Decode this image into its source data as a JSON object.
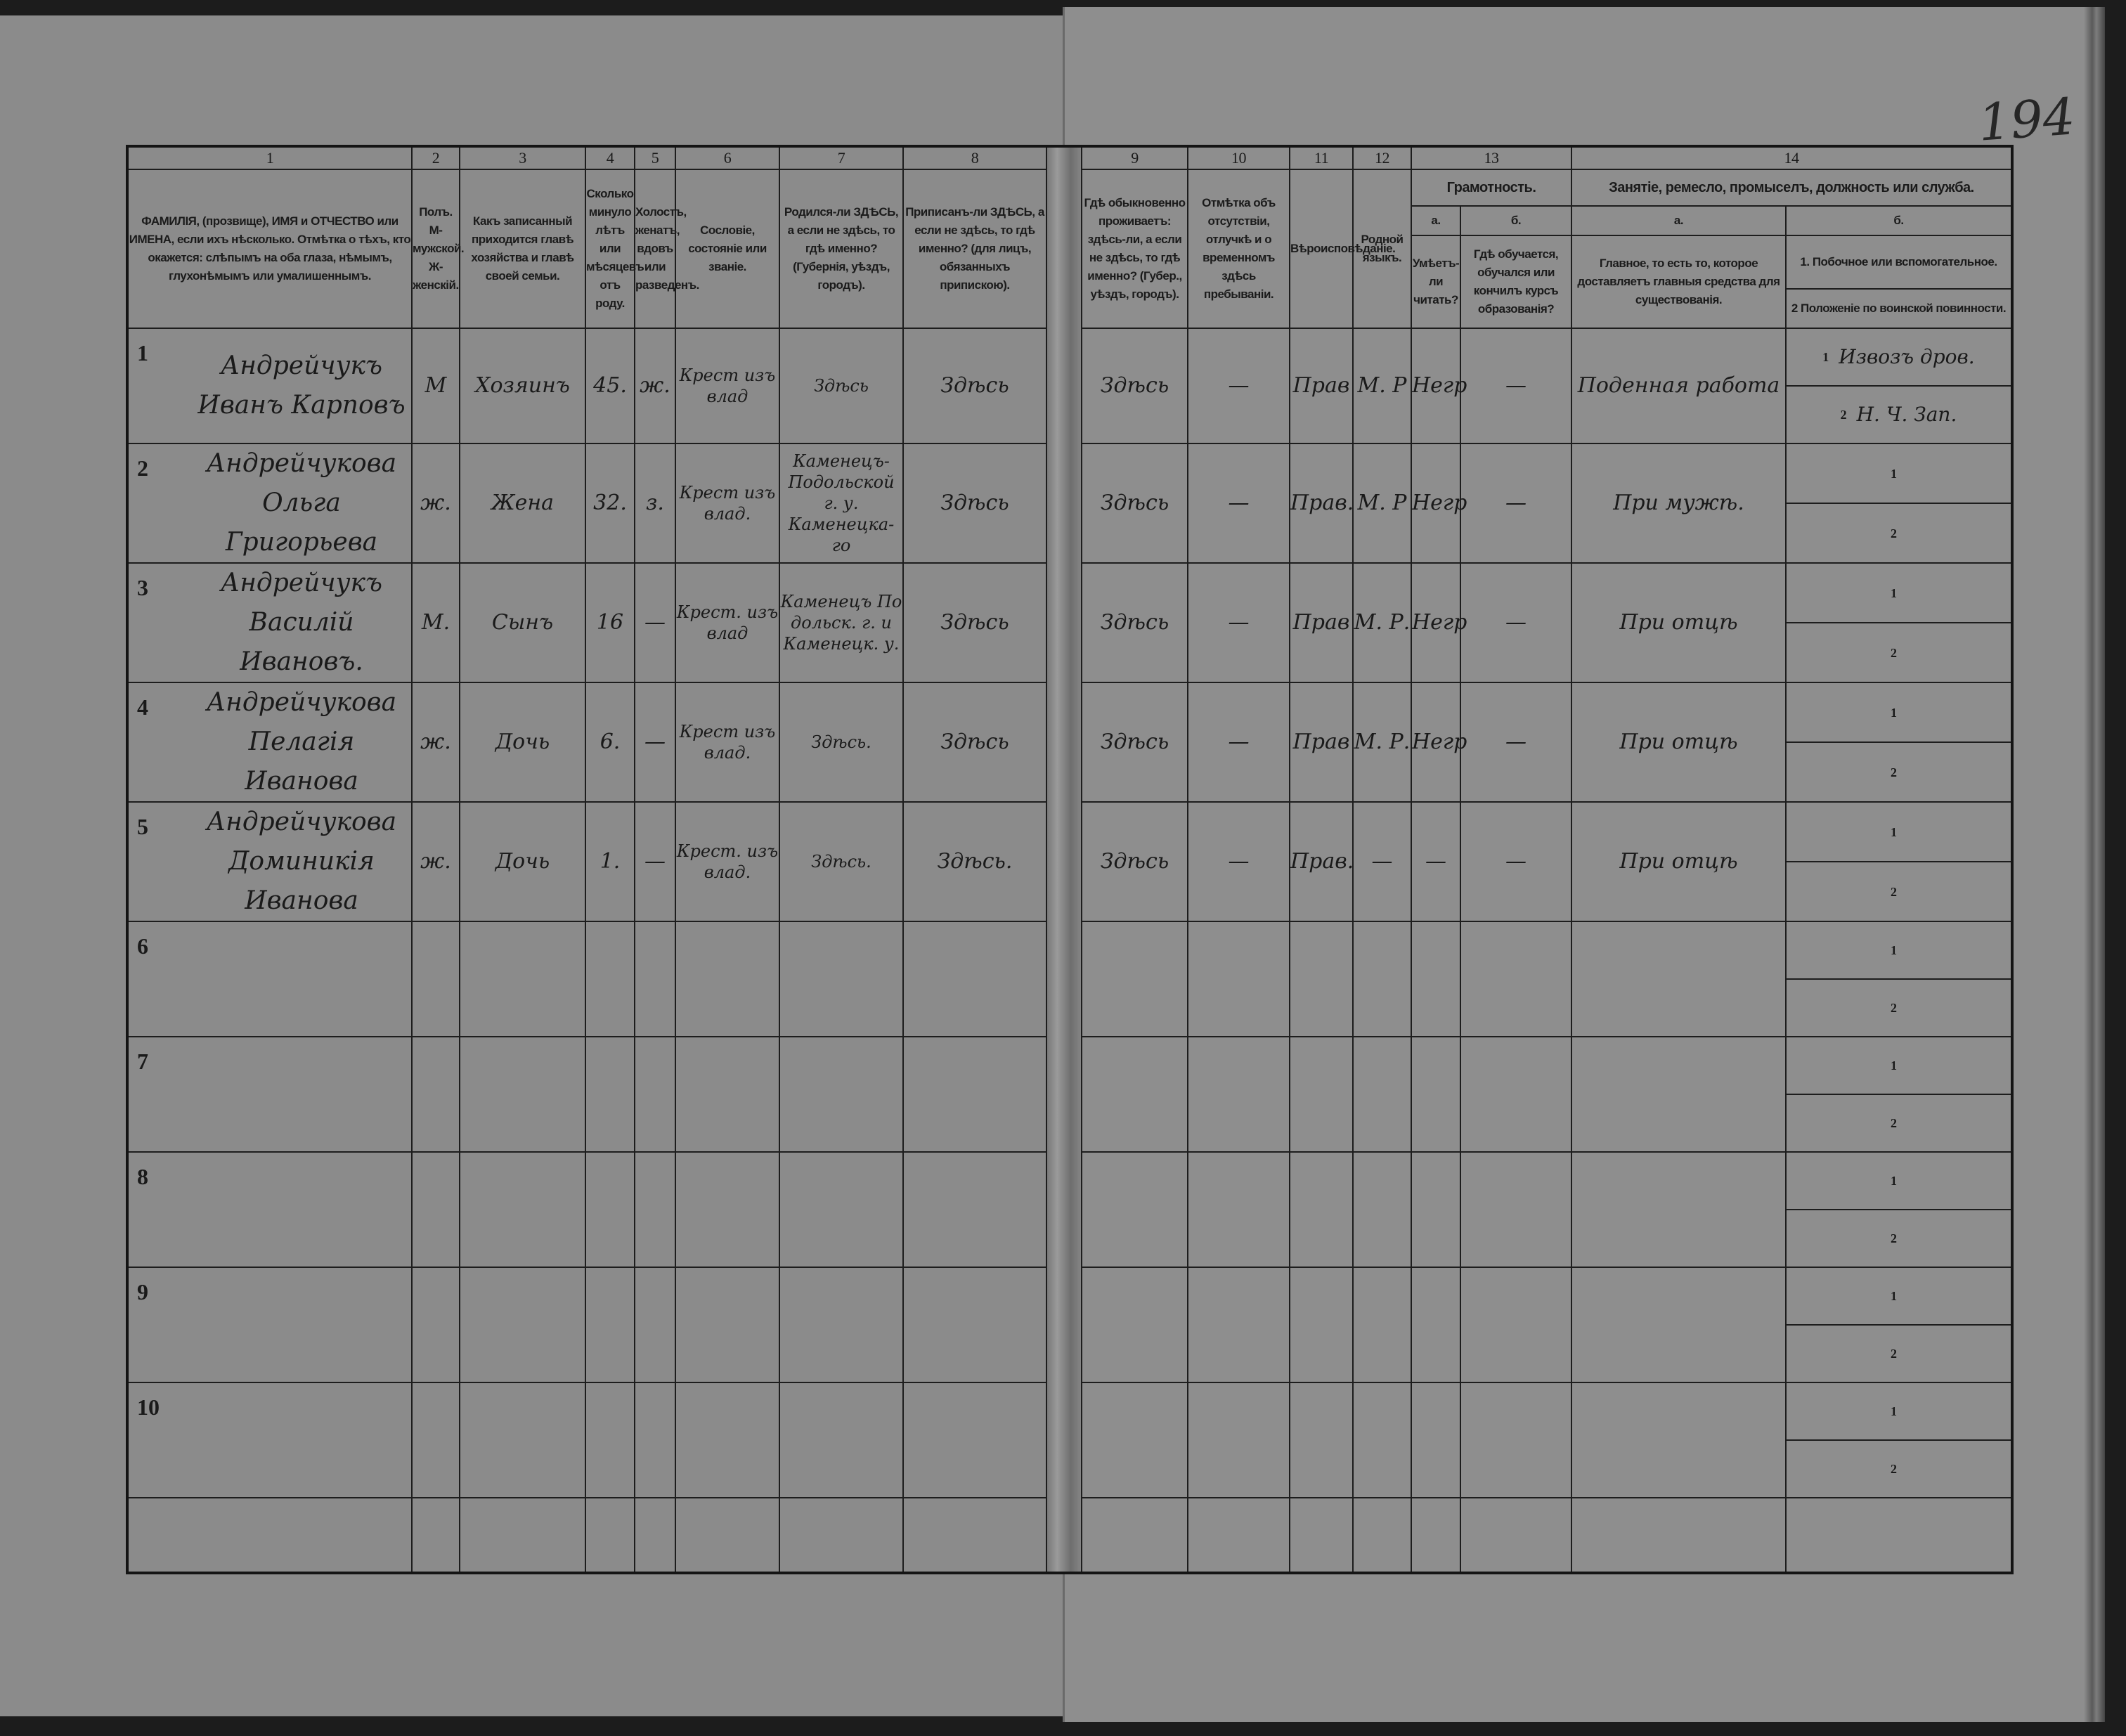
{
  "page_number": "194",
  "header": {
    "columns": [
      {
        "num": "1",
        "title": "ФАМИЛІЯ, (прозвище), ИМЯ и ОТЧЕСТВО или ИМЕНА, если ихъ нѣсколько. Отмѣтка о тѣхъ, кто окажется: слѣпымъ на оба глаза, нѣмымъ, глухонѣмымъ или умалишеннымъ."
      },
      {
        "num": "2",
        "title": "Полъ. М-мужской. Ж-женскій."
      },
      {
        "num": "3",
        "title": "Какъ записанный приходится главѣ хозяйства и главѣ своей семьи."
      },
      {
        "num": "4",
        "title": "Сколько минуло лѣтъ или мѣсяцевъ отъ роду."
      },
      {
        "num": "5",
        "title": "Холостъ, женатъ, вдовъ или разведенъ."
      },
      {
        "num": "6",
        "title": "Сословіе, состояніе или званіе."
      },
      {
        "num": "7",
        "title": "Родился-ли ЗДѢСЬ, а если не здѣсь, то гдѣ именно? (Губернія, уѣздъ, городъ)."
      },
      {
        "num": "8",
        "title": "Приписанъ-ли ЗДѢСЬ, а если не здѣсь, то гдѣ именно? (для лицъ, обязанныхъ припискою)."
      },
      {
        "num": "9",
        "title": "Гдѣ обыкновенно проживаетъ: здѣсь-ли, а если не здѣсь, то гдѣ именно? (Губер., уѣздъ, городъ)."
      },
      {
        "num": "10",
        "title": "Отмѣтка объ отсутствіи, отлучкѣ и о временномъ здѣсь пребываніи."
      },
      {
        "num": "11",
        "title": "Вѣроисповѣданіе."
      },
      {
        "num": "12",
        "title": "Родной языкъ."
      }
    ],
    "col13": {
      "num": "13",
      "title": "Грамотность.",
      "a_label": "а.",
      "a_title": "Умѣетъ-ли читать?",
      "b_label": "б.",
      "b_title": "Гдѣ обучается, обучался или кончилъ курсъ образованія?"
    },
    "col14": {
      "num": "14",
      "title": "Занятіе, ремесло, промыселъ, должность или служба.",
      "a_label": "а.",
      "a_title": "Главное, то есть то, которое доставляетъ главныя средства для существованія.",
      "b_label": "б.",
      "b1_title": "1. Побочное или вспомогательное.",
      "b2_title": "2 Положеніе по воинской повинности."
    }
  },
  "rows": [
    {
      "n": "1",
      "name": "Андрейчукъ Иванъ Карповъ",
      "sex": "М",
      "relation": "Хозяинъ",
      "age": "45.",
      "marital": "ж.",
      "estate": "Крест изъ влад",
      "born": "Здѣсь",
      "registered": "Здѣсь",
      "residence": "Здѣсь",
      "absence": "—",
      "religion": "Прав",
      "language": "М. Р",
      "literate": "Негр",
      "education": "—",
      "occupation": "Поденная работа",
      "secondary": "Извозъ дров.",
      "military": "Н. Ч. Зап.",
      "sub1": "1",
      "sub2": "2"
    },
    {
      "n": "2",
      "name": "Андрейчукова Ольга Григорьева",
      "sex": "ж.",
      "relation": "Жена",
      "age": "32.",
      "marital": "з.",
      "estate": "Крест изъ влад.",
      "born": "Каменецъ-Подольской г. у. Каменецка-го",
      "registered": "Здѣсь",
      "residence": "Здѣсь",
      "absence": "—",
      "religion": "Прав.",
      "language": "М. Р",
      "literate": "Негр",
      "education": "—",
      "occupation": "При мужѣ.",
      "secondary": "",
      "military": "",
      "sub1": "1",
      "sub2": "2"
    },
    {
      "n": "3",
      "name": "Андрейчукъ Василій Ивановъ.",
      "sex": "М.",
      "relation": "Сынъ",
      "age": "16",
      "marital": "—",
      "estate": "Крест. изъ влад",
      "born": "Каменецъ По дольск. г. и Каменецк. у.",
      "registered": "Здѣсь",
      "residence": "Здѣсь",
      "absence": "—",
      "religion": "Прав",
      "language": "М. Р.",
      "literate": "Негр",
      "education": "—",
      "occupation": "При отцѣ",
      "secondary": "",
      "military": "",
      "sub1": "1",
      "sub2": "2"
    },
    {
      "n": "4",
      "name": "Андрейчукова Пелагія Иванова",
      "sex": "ж.",
      "relation": "Дочь",
      "age": "6.",
      "marital": "—",
      "estate": "Крест изъ влад.",
      "born": "Здѣсь.",
      "registered": "Здѣсь",
      "residence": "Здѣсь",
      "absence": "—",
      "religion": "Прав",
      "language": "М. Р.",
      "literate": "Негр",
      "education": "—",
      "occupation": "При отцѣ",
      "secondary": "",
      "military": "",
      "sub1": "1",
      "sub2": "2"
    },
    {
      "n": "5",
      "name": "Андрейчукова Доминикія Иванова",
      "sex": "ж.",
      "relation": "Дочь",
      "age": "1.",
      "marital": "—",
      "estate": "Крест. изъ влад.",
      "born": "Здѣсь.",
      "registered": "Здѣсь.",
      "residence": "Здѣсь",
      "absence": "—",
      "religion": "Прав.",
      "language": "—",
      "literate": "—",
      "education": "—",
      "occupation": "При отцѣ",
      "secondary": "",
      "military": "",
      "sub1": "1",
      "sub2": "2"
    },
    {
      "n": "6",
      "name": "",
      "sex": "",
      "relation": "",
      "age": "",
      "marital": "",
      "estate": "",
      "born": "",
      "registered": "",
      "residence": "",
      "absence": "",
      "religion": "",
      "language": "",
      "literate": "",
      "education": "",
      "occupation": "",
      "secondary": "",
      "military": "",
      "sub1": "1",
      "sub2": "2"
    },
    {
      "n": "7",
      "name": "",
      "sex": "",
      "relation": "",
      "age": "",
      "marital": "",
      "estate": "",
      "born": "",
      "registered": "",
      "residence": "",
      "absence": "",
      "religion": "",
      "language": "",
      "literate": "",
      "education": "",
      "occupation": "",
      "secondary": "",
      "military": "",
      "sub1": "1",
      "sub2": "2"
    },
    {
      "n": "8",
      "name": "",
      "sex": "",
      "relation": "",
      "age": "",
      "marital": "",
      "estate": "",
      "born": "",
      "registered": "",
      "residence": "",
      "absence": "",
      "religion": "",
      "language": "",
      "literate": "",
      "education": "",
      "occupation": "",
      "secondary": "",
      "military": "",
      "sub1": "1",
      "sub2": "2"
    },
    {
      "n": "9",
      "name": "",
      "sex": "",
      "relation": "",
      "age": "",
      "marital": "",
      "estate": "",
      "born": "",
      "registered": "",
      "residence": "",
      "absence": "",
      "religion": "",
      "language": "",
      "literate": "",
      "education": "",
      "occupation": "",
      "secondary": "",
      "military": "",
      "sub1": "1",
      "sub2": "2"
    },
    {
      "n": "10",
      "name": "",
      "sex": "",
      "relation": "",
      "age": "",
      "marital": "",
      "estate": "",
      "born": "",
      "registered": "",
      "residence": "",
      "absence": "",
      "religion": "",
      "language": "",
      "literate": "",
      "education": "",
      "occupation": "",
      "secondary": "",
      "military": "",
      "sub1": "1",
      "sub2": "2"
    }
  ]
}
